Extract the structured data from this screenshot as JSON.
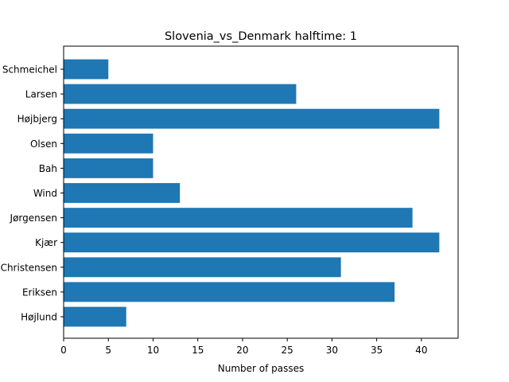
{
  "chart_data": {
    "type": "bar",
    "orientation": "horizontal",
    "title": "Slovenia_vs_Denmark halftime: 1",
    "xlabel": "Number of passes",
    "ylabel": "",
    "categories": [
      "Schmeichel",
      "Larsen",
      "Højbjerg",
      "Olsen",
      "Bah",
      "Wind",
      "Jørgensen",
      "Kjær",
      "Christensen",
      "Eriksen",
      "Højlund"
    ],
    "values": [
      5,
      26,
      42,
      10,
      10,
      13,
      39,
      42,
      31,
      37,
      7
    ],
    "xlim": [
      0,
      44.1
    ],
    "xticks": [
      0,
      5,
      10,
      15,
      20,
      25,
      30,
      35,
      40
    ],
    "grid": false,
    "bar_color": "#1f77b4"
  }
}
